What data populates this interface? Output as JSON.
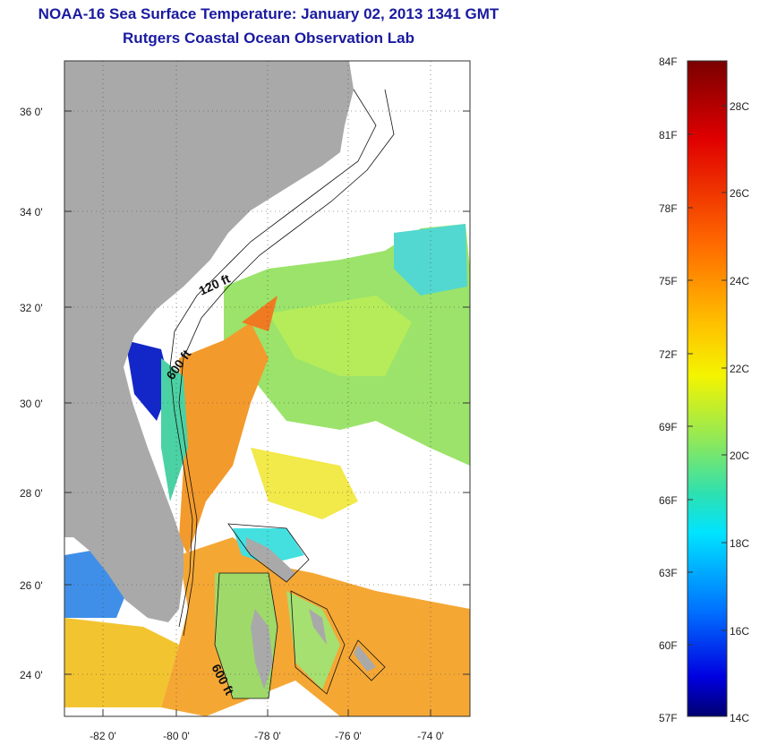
{
  "title": "NOAA-16 Sea Surface Temperature:  January 02, 2013 1341 GMT",
  "subtitle": "Rutgers Coastal Ocean Observation Lab",
  "map": {
    "lat_ticks": [
      "36 0'",
      "34 0'",
      "32 0'",
      "30 0'",
      "28 0'",
      "26 0'",
      "24 0'"
    ],
    "lon_ticks": [
      "-82 0'",
      "-80 0'",
      "-78 0'",
      "-76 0'",
      "-74 0'"
    ],
    "contour_labels": [
      "120 ft",
      "600 ft",
      "600 ft"
    ],
    "land_color": "#a9a9a9"
  },
  "colorbar": {
    "fahrenheit_labels": [
      "84F",
      "81F",
      "78F",
      "75F",
      "72F",
      "69F",
      "66F",
      "63F",
      "60F",
      "57F"
    ],
    "celsius_labels": [
      "28C",
      "26C",
      "24C",
      "22C",
      "20C",
      "18C",
      "16C",
      "14C"
    ],
    "colors": [
      "#800000",
      "#ff0000",
      "#ff8000",
      "#ffff00",
      "#80ff80",
      "#00ffff",
      "#0080ff",
      "#0000ff",
      "#000080"
    ]
  }
}
